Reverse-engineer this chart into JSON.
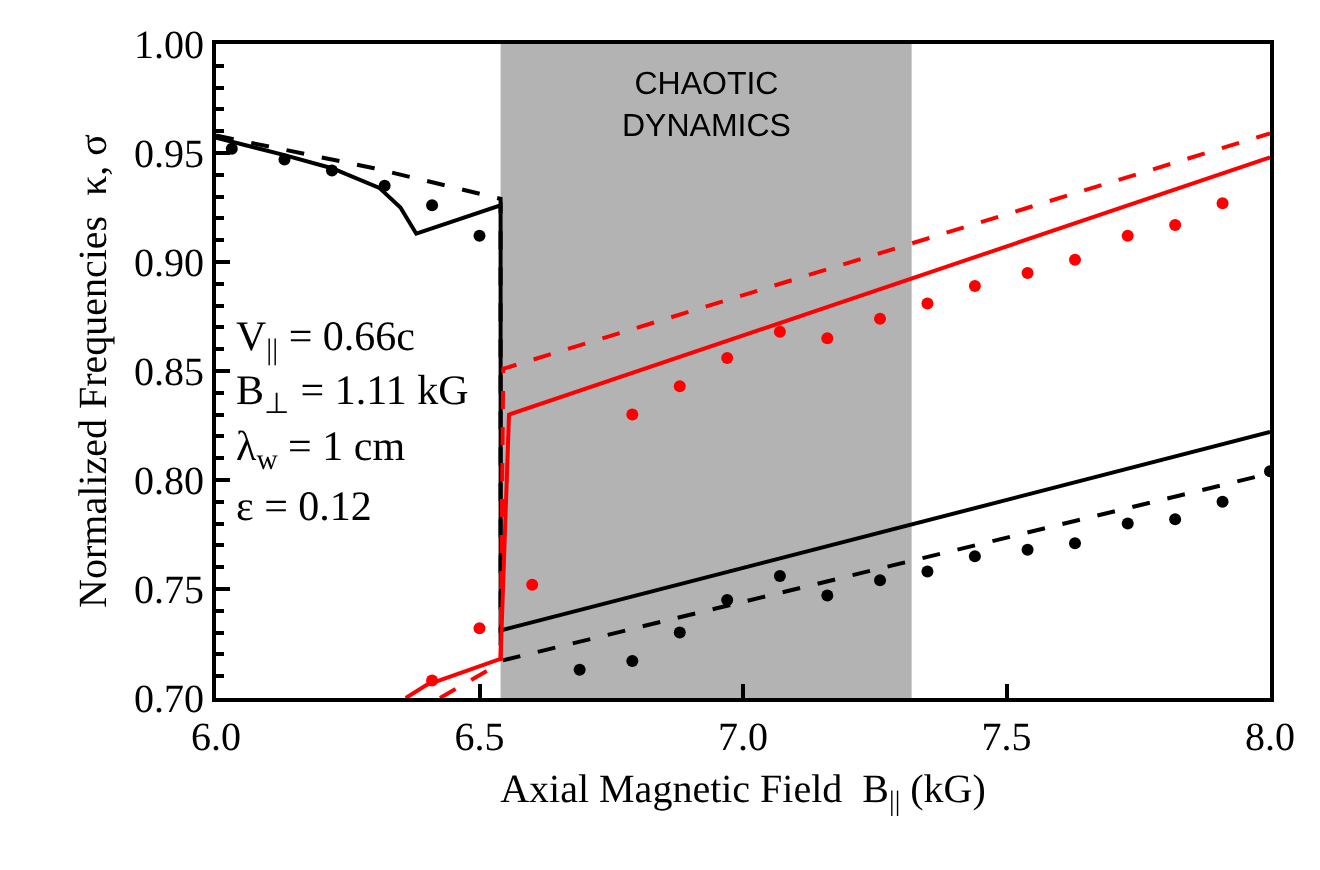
{
  "chart_data": {
    "type": "line",
    "xlabel": "Axial Magnetic Field  B$_{||}$ (kG)",
    "ylabel": "Normalized Frequencies  κ, σ",
    "xlim": [
      6.0,
      8.0
    ],
    "xticks": [
      {
        "value": 6.0,
        "label": "6.0"
      },
      {
        "value": 6.5,
        "label": "6.5"
      },
      {
        "value": 7.0,
        "label": "7.0"
      },
      {
        "value": 7.5,
        "label": "7.5"
      },
      {
        "value": 8.0,
        "label": "8.0"
      }
    ],
    "ylim": [
      0.7,
      1.0
    ],
    "yticks": [
      {
        "value": 0.7,
        "label": "0.70"
      },
      {
        "value": 0.75,
        "label": "0.75"
      },
      {
        "value": 0.8,
        "label": "0.80"
      },
      {
        "value": 0.85,
        "label": "0.85"
      },
      {
        "value": 0.9,
        "label": "0.90"
      },
      {
        "value": 0.95,
        "label": "0.95"
      },
      {
        "value": 1.0,
        "label": "1.00"
      }
    ],
    "grid": false,
    "bands": [
      {
        "axis": "x",
        "from": 6.54,
        "to": 7.32,
        "label": "CHAOTIC\nDYNAMICS",
        "color": "#b3b3b3"
      }
    ],
    "annotations": [
      "V$_{||}$ = 0.66c",
      "B$_{⊥}$ = 1.11 kG",
      "λ$_{w}$ = 1 cm",
      "ε = 0.12"
    ],
    "series": [
      {
        "color": "#000000",
        "line_style": "solid",
        "marker": "none",
        "x": [
          6.0,
          6.13,
          6.22,
          6.31,
          6.35,
          6.38,
          6.54,
          6.54,
          8.0
        ],
        "values": [
          0.957,
          0.949,
          0.943,
          0.934,
          0.925,
          0.913,
          0.926,
          0.731,
          0.822
        ]
      },
      {
        "color": "#000000",
        "line_style": "dashed",
        "marker": "none",
        "x": [
          6.0,
          6.3,
          6.54,
          6.54,
          8.0
        ],
        "values": [
          0.958,
          0.943,
          0.929,
          0.717,
          0.803
        ]
      },
      {
        "type": "scatter",
        "color": "#000000",
        "marker": "circle",
        "x": [
          6.03,
          6.13,
          6.22,
          6.32,
          6.41,
          6.5,
          6.69,
          6.79,
          6.88,
          6.97,
          7.07,
          7.16,
          7.26,
          7.35,
          7.44,
          7.54,
          7.63,
          7.73,
          7.82,
          7.91,
          8.0
        ],
        "values": [
          0.952,
          0.947,
          0.942,
          0.935,
          0.926,
          0.912,
          0.713,
          0.717,
          0.73,
          0.745,
          0.756,
          0.747,
          0.754,
          0.758,
          0.765,
          0.768,
          0.771,
          0.78,
          0.782,
          0.79,
          0.804
        ]
      },
      {
        "color": "#ff0000",
        "line_style": "solid",
        "marker": "none",
        "x": [
          6.36,
          6.4,
          6.54,
          6.556,
          8.0
        ],
        "values": [
          0.7,
          0.706,
          0.718,
          0.83,
          0.948
        ]
      },
      {
        "color": "#ff0000",
        "line_style": "dashed",
        "marker": "none",
        "x": [
          6.425,
          6.54,
          6.545,
          8.0
        ],
        "values": [
          0.7,
          0.716,
          0.851,
          0.959
        ]
      },
      {
        "type": "scatter",
        "color": "#ff0000",
        "marker": "circle",
        "x": [
          6.41,
          6.5,
          6.6,
          6.79,
          6.88,
          6.97,
          7.07,
          7.16,
          7.26,
          7.35,
          7.44,
          7.54,
          7.63,
          7.73,
          7.82,
          7.91
        ],
        "values": [
          0.708,
          0.732,
          0.752,
          0.83,
          0.843,
          0.856,
          0.868,
          0.865,
          0.874,
          0.881,
          0.889,
          0.895,
          0.901,
          0.912,
          0.917,
          0.927
        ]
      }
    ]
  }
}
